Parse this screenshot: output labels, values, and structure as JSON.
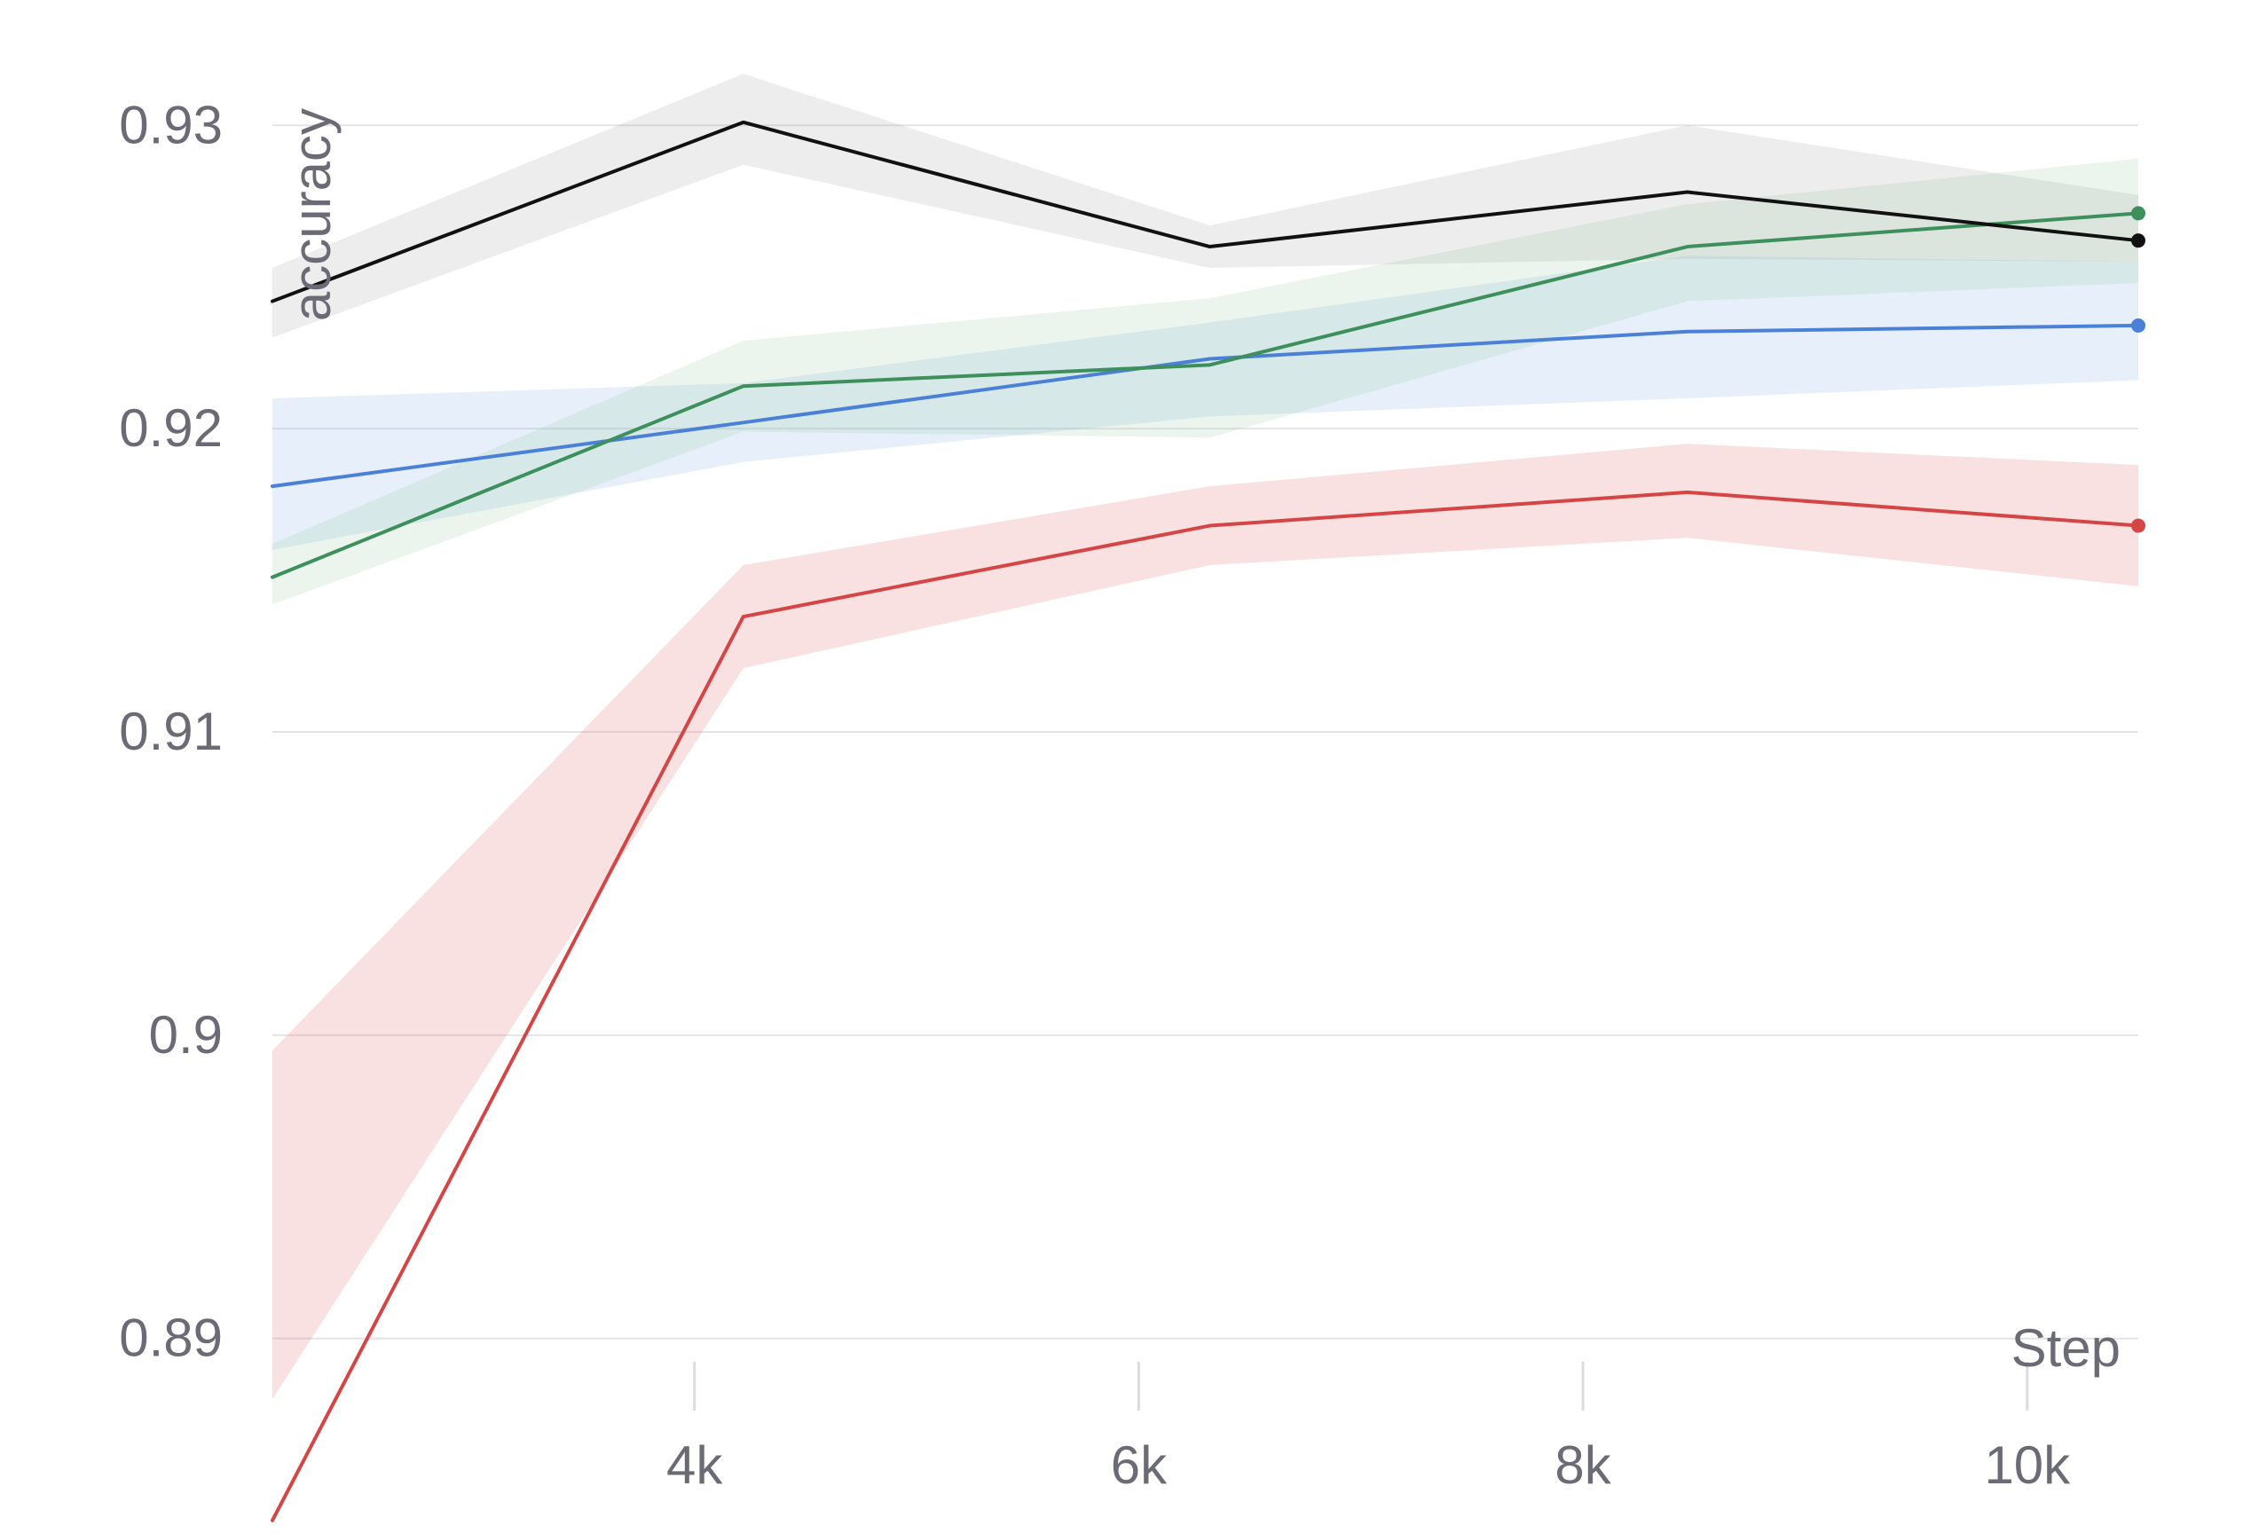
{
  "chart_data": {
    "type": "line",
    "xlabel": "Step",
    "ylabel": "accuracy",
    "xlim": [
      2100,
      10500
    ],
    "ylim": [
      0.8885,
      0.9315
    ],
    "x_ticks": [
      {
        "value": 4000,
        "label": "4k"
      },
      {
        "value": 6000,
        "label": "6k"
      },
      {
        "value": 8000,
        "label": "8k"
      },
      {
        "value": 10000,
        "label": "10k"
      }
    ],
    "y_ticks": [
      {
        "value": 0.89,
        "label": "0.89"
      },
      {
        "value": 0.9,
        "label": "0.9"
      },
      {
        "value": 0.91,
        "label": "0.91"
      },
      {
        "value": 0.92,
        "label": "0.92"
      },
      {
        "value": 0.93,
        "label": "0.93"
      }
    ],
    "grid": {
      "y": true,
      "x": false
    },
    "series": [
      {
        "color": "#e05a5a",
        "line_color": "#d64545",
        "x": [
          2100,
          4220,
          6320,
          8470,
          10500
        ],
        "values": [
          0.884,
          0.9138,
          0.9168,
          0.9179,
          0.9168
        ],
        "lower": [
          0.888,
          0.9121,
          0.9155,
          0.9164,
          0.9148
        ],
        "upper": [
          0.8995,
          0.9155,
          0.9181,
          0.9195,
          0.9188
        ]
      },
      {
        "color": "#7aa8e8",
        "line_color": "#4a80d8",
        "x": [
          2100,
          4220,
          6320,
          8470,
          10500
        ],
        "values": [
          0.9181,
          0.9202,
          0.9223,
          0.9232,
          0.9234
        ],
        "lower": [
          0.916,
          0.9189,
          0.9204,
          0.921,
          0.9216
        ],
        "upper": [
          0.921,
          0.9215,
          0.9235,
          0.9257,
          0.9255
        ]
      },
      {
        "color": "#8fc89a",
        "line_color": "#3d8f5c",
        "x": [
          2100,
          4220,
          6320,
          8470,
          10500
        ],
        "values": [
          0.9151,
          0.9214,
          0.9221,
          0.926,
          0.9271
        ],
        "lower": [
          0.9142,
          0.9199,
          0.9197,
          0.9242,
          0.9248
        ],
        "upper": [
          0.9162,
          0.9229,
          0.9243,
          0.9274,
          0.9289
        ]
      },
      {
        "color": "#9a9a9a",
        "line_color": "#111111",
        "x": [
          2100,
          4220,
          6320,
          8470,
          10500
        ],
        "values": [
          0.9242,
          0.9301,
          0.926,
          0.9278,
          0.9262
        ],
        "lower": [
          0.923,
          0.9287,
          0.9253,
          0.9256,
          0.9255
        ],
        "upper": [
          0.9253,
          0.9317,
          0.9267,
          0.93,
          0.9277
        ]
      }
    ]
  }
}
